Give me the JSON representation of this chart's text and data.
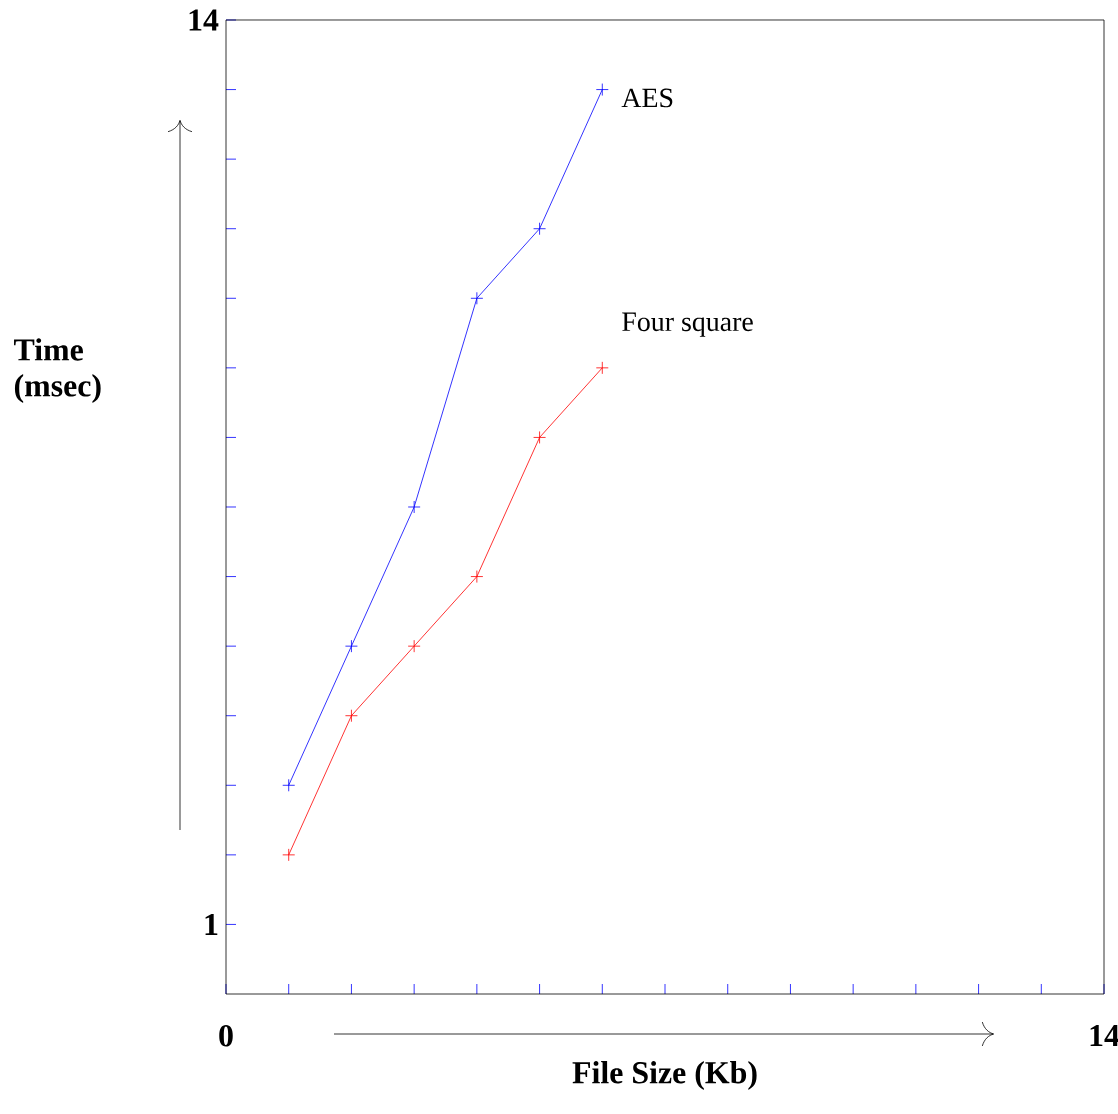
{
  "chart_data": {
    "type": "line",
    "xlabel": "File Size (Kb)",
    "ylabel": "Time\n(msec)",
    "xlim": [
      0,
      14
    ],
    "ylim": [
      0,
      14
    ],
    "xticks": [
      0,
      {
        "value": 1,
        "label": null
      },
      {
        "value": 2,
        "label": null
      },
      {
        "value": 3,
        "label": null
      },
      {
        "value": 4,
        "label": null
      },
      {
        "value": 5,
        "label": null
      },
      {
        "value": 6,
        "label": null
      },
      {
        "value": 7,
        "label": null
      },
      {
        "value": 8,
        "label": null
      },
      {
        "value": 9,
        "label": null
      },
      {
        "value": 10,
        "label": null
      },
      {
        "value": 11,
        "label": null
      },
      {
        "value": 12,
        "label": null
      },
      {
        "value": 13,
        "label": null
      },
      14
    ],
    "yticks": [
      1,
      {
        "value": 2,
        "label": null
      },
      {
        "value": 3,
        "label": null
      },
      {
        "value": 4,
        "label": null
      },
      {
        "value": 5,
        "label": null
      },
      {
        "value": 6,
        "label": null
      },
      {
        "value": 7,
        "label": null
      },
      {
        "value": 8,
        "label": null
      },
      {
        "value": 9,
        "label": null
      },
      {
        "value": 10,
        "label": null
      },
      {
        "value": 11,
        "label": null
      },
      {
        "value": 12,
        "label": null
      },
      {
        "value": 13,
        "label": null
      },
      14
    ],
    "x": [
      1,
      2,
      3,
      4,
      5,
      6
    ],
    "marker": "cross",
    "grid": false,
    "series": [
      {
        "name": "AES",
        "color": "#0000ff",
        "values": [
          3,
          5,
          7,
          10,
          11,
          13
        ]
      },
      {
        "name": "Four square",
        "color": "#ff0000",
        "values": [
          2,
          4,
          5,
          6,
          8,
          9
        ]
      }
    ]
  }
}
